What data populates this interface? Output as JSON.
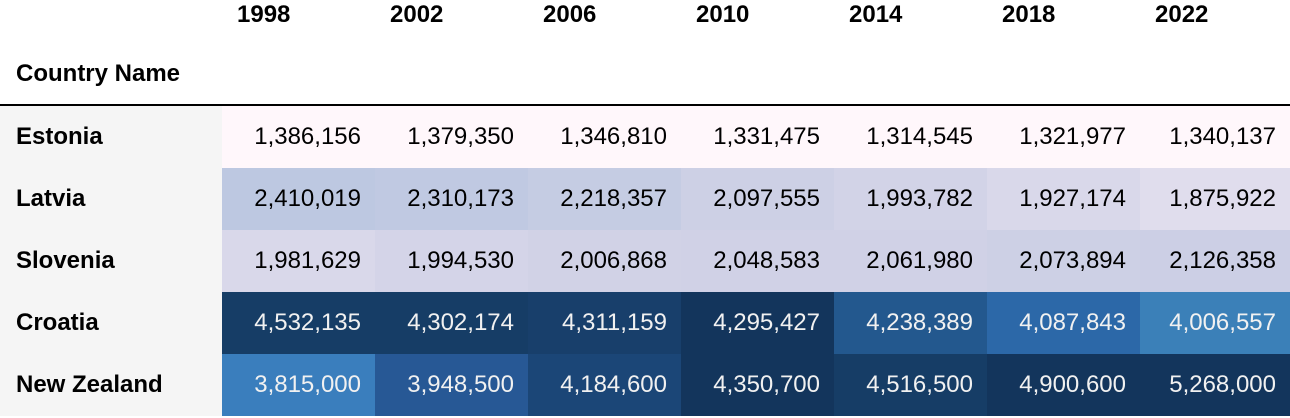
{
  "chart_data": {
    "type": "table",
    "index_label": "Country Name",
    "columns": [
      "1998",
      "2002",
      "2006",
      "2010",
      "2014",
      "2018",
      "2022"
    ],
    "rows": [
      {
        "label": "Estonia",
        "cells": [
          {
            "text": "1,386,156",
            "bg": "#fff7fb",
            "fg": "#000000"
          },
          {
            "text": "1,379,350",
            "bg": "#fff7fb",
            "fg": "#000000"
          },
          {
            "text": "1,346,810",
            "bg": "#fff7fb",
            "fg": "#000000"
          },
          {
            "text": "1,331,475",
            "bg": "#fff7fb",
            "fg": "#000000"
          },
          {
            "text": "1,314,545",
            "bg": "#fff7fb",
            "fg": "#000000"
          },
          {
            "text": "1,321,977",
            "bg": "#fff7fb",
            "fg": "#000000"
          },
          {
            "text": "1,340,137",
            "bg": "#fff7fb",
            "fg": "#000000"
          }
        ]
      },
      {
        "label": "Latvia",
        "cells": [
          {
            "text": "2,410,019",
            "bg": "#bdc8e1",
            "fg": "#000000"
          },
          {
            "text": "2,310,173",
            "bg": "#c0c9e2",
            "fg": "#000000"
          },
          {
            "text": "2,218,357",
            "bg": "#c5cce3",
            "fg": "#000000"
          },
          {
            "text": "2,097,555",
            "bg": "#cdd0e5",
            "fg": "#000000"
          },
          {
            "text": "1,993,782",
            "bg": "#d2d3e7",
            "fg": "#000000"
          },
          {
            "text": "1,927,174",
            "bg": "#d9d8ea",
            "fg": "#000000"
          },
          {
            "text": "1,875,922",
            "bg": "#e0dded",
            "fg": "#000000"
          }
        ]
      },
      {
        "label": "Slovenia",
        "cells": [
          {
            "text": "1,981,629",
            "bg": "#d9d8ea",
            "fg": "#000000"
          },
          {
            "text": "1,994,530",
            "bg": "#d4d4e8",
            "fg": "#000000"
          },
          {
            "text": "2,006,868",
            "bg": "#d1d2e6",
            "fg": "#000000"
          },
          {
            "text": "2,048,583",
            "bg": "#d0d1e6",
            "fg": "#000000"
          },
          {
            "text": "2,061,980",
            "bg": "#d0d1e6",
            "fg": "#000000"
          },
          {
            "text": "2,073,894",
            "bg": "#cdd0e5",
            "fg": "#000000"
          },
          {
            "text": "2,126,358",
            "bg": "#cccfe5",
            "fg": "#000000"
          }
        ]
      },
      {
        "label": "Croatia",
        "cells": [
          {
            "text": "4,532,135",
            "bg": "#163d66",
            "fg": "#f1f1f1"
          },
          {
            "text": "4,302,174",
            "bg": "#163d66",
            "fg": "#f1f1f1"
          },
          {
            "text": "4,311,159",
            "bg": "#183f6b",
            "fg": "#f1f1f1"
          },
          {
            "text": "4,295,427",
            "bg": "#13355c",
            "fg": "#f1f1f1"
          },
          {
            "text": "4,238,389",
            "bg": "#23588e",
            "fg": "#f1f1f1"
          },
          {
            "text": "4,087,843",
            "bg": "#2c68a8",
            "fg": "#f1f1f1"
          },
          {
            "text": "4,006,557",
            "bg": "#3b80b8",
            "fg": "#f1f1f1"
          }
        ]
      },
      {
        "label": "New Zealand",
        "cells": [
          {
            "text": "3,815,000",
            "bg": "#3a7ebd",
            "fg": "#f1f1f1"
          },
          {
            "text": "3,948,500",
            "bg": "#275895",
            "fg": "#f1f1f1"
          },
          {
            "text": "4,184,600",
            "bg": "#1b4677",
            "fg": "#f1f1f1"
          },
          {
            "text": "4,350,700",
            "bg": "#13355c",
            "fg": "#f1f1f1"
          },
          {
            "text": "4,516,500",
            "bg": "#163d66",
            "fg": "#f1f1f1"
          },
          {
            "text": "4,900,600",
            "bg": "#13355c",
            "fg": "#f1f1f1"
          },
          {
            "text": "5,268,000",
            "bg": "#13355c",
            "fg": "#f1f1f1"
          }
        ]
      }
    ]
  }
}
